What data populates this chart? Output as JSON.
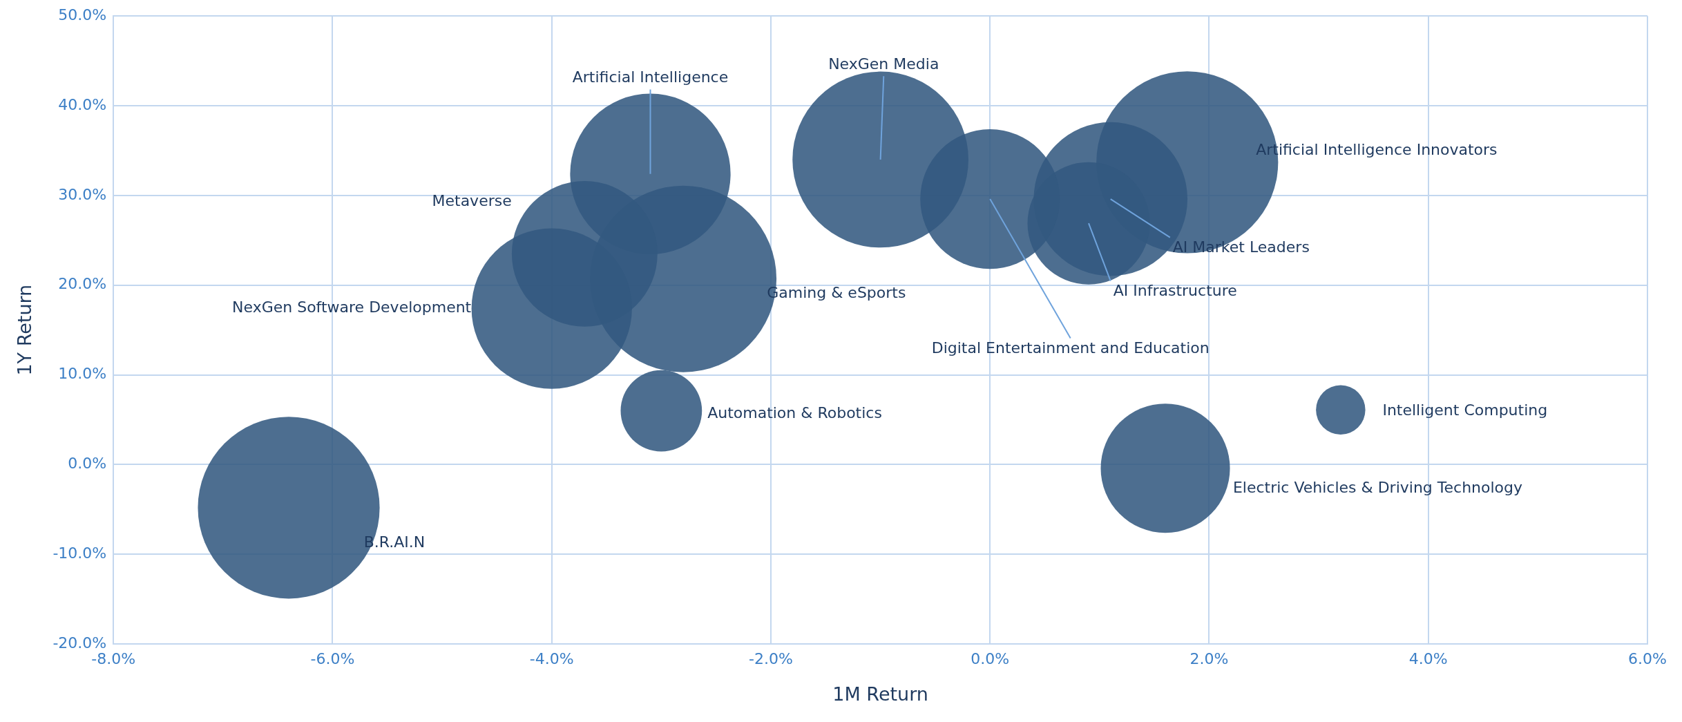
{
  "chart_data": {
    "type": "bubble",
    "xlabel": "1M Return",
    "ylabel": "1Y Return",
    "xlim": [
      -8,
      6
    ],
    "xticks": [
      {
        "value": -8,
        "label": "-8.0%"
      },
      {
        "value": -6,
        "label": "-6.0%"
      },
      {
        "value": -4,
        "label": "-4.0%"
      },
      {
        "value": -2,
        "label": "-2.0%"
      },
      {
        "value": 0,
        "label": "0.0%"
      },
      {
        "value": 2,
        "label": "2.0%"
      },
      {
        "value": 4,
        "label": "4.0%"
      },
      {
        "value": 6,
        "label": "6.0%"
      }
    ],
    "ylim": [
      -20,
      50
    ],
    "yticks": [
      {
        "value": -20,
        "label": "-20.0%"
      },
      {
        "value": -10,
        "label": "-10.0%"
      },
      {
        "value": 0,
        "label": "0.0%"
      },
      {
        "value": 10,
        "label": "10.0%"
      },
      {
        "value": 20,
        "label": "20.0%"
      },
      {
        "value": 30,
        "label": "30.0%"
      },
      {
        "value": 40,
        "label": "40.0%"
      },
      {
        "value": 50,
        "label": "50.0%"
      }
    ],
    "grid": true,
    "series": [
      {
        "name": "B.R.AI.N",
        "color": "#33587f",
        "x": [
          -6.4
        ],
        "values": [
          -4.8
        ],
        "sizes": [
          0.95
        ]
      },
      {
        "name": "NexGen Software Development",
        "color": "#33587f",
        "x": [
          -4.0
        ],
        "values": [
          17.4
        ],
        "sizes": [
          0.74
        ]
      },
      {
        "name": "Metaverse",
        "color": "#33587f",
        "x": [
          -3.7
        ],
        "values": [
          23.5
        ],
        "sizes": [
          0.61
        ]
      },
      {
        "name": "Artificial Intelligence",
        "color": "#33587f",
        "x": [
          -3.1
        ],
        "values": [
          32.4
        ],
        "sizes": [
          0.74
        ]
      },
      {
        "name": "Gaming & eSports",
        "color": "#33587f",
        "x": [
          -2.8
        ],
        "values": [
          20.7
        ],
        "sizes": [
          1
        ]
      },
      {
        "name": "Automation & Robotics",
        "color": "#33587f",
        "x": [
          -3.0
        ],
        "values": [
          6.0
        ],
        "sizes": [
          0.19
        ]
      },
      {
        "name": "NexGen Media",
        "color": "#33587f",
        "x": [
          -1.0
        ],
        "values": [
          34.0
        ],
        "sizes": [
          0.89
        ]
      },
      {
        "name": "Digital Entertainment and Education",
        "color": "#33587f",
        "x": [
          0.0
        ],
        "values": [
          29.6
        ],
        "sizes": [
          0.56
        ]
      },
      {
        "name": "AI Infrastructure",
        "color": "#33587f",
        "x": [
          0.9
        ],
        "values": [
          26.9
        ],
        "sizes": [
          0.43
        ]
      },
      {
        "name": "AI Market Leaders",
        "color": "#33587f",
        "x": [
          1.1
        ],
        "values": [
          29.6
        ],
        "sizes": [
          0.68
        ]
      },
      {
        "name": "Artificial Intelligence Innovators",
        "color": "#33587f",
        "x": [
          1.8
        ],
        "values": [
          33.7
        ],
        "sizes": [
          0.95
        ]
      },
      {
        "name": "Electric Vehicles & Driving Technology",
        "color": "#33587f",
        "x": [
          1.6
        ],
        "values": [
          -0.4
        ],
        "sizes": [
          0.48
        ]
      },
      {
        "name": "Intelligent Computing",
        "color": "#33587f",
        "x": [
          3.2
        ],
        "values": [
          6.1
        ],
        "sizes": [
          0.07
        ]
      }
    ]
  }
}
